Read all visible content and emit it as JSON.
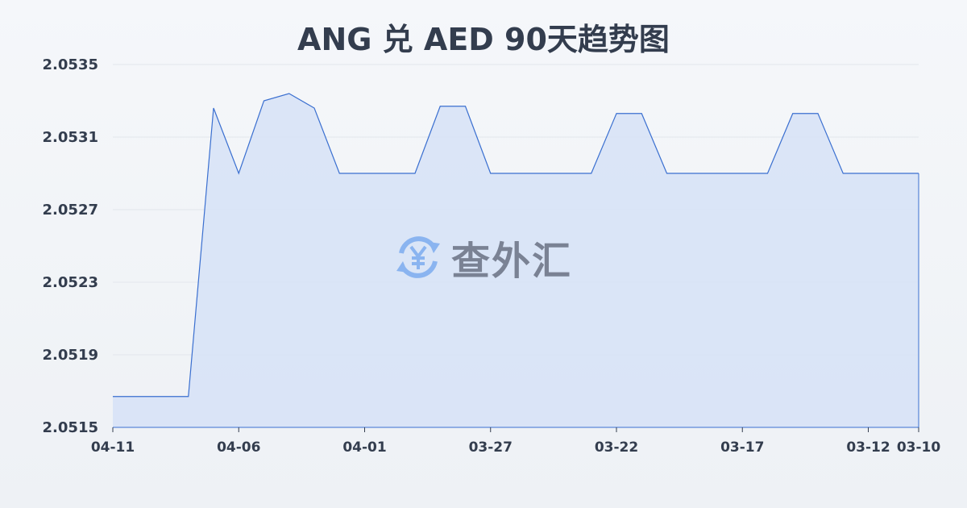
{
  "chart_data": {
    "type": "area",
    "title": "ANG 兑 AED 90天趋势图",
    "xlabel": "",
    "ylabel": "",
    "ylim": [
      2.0515,
      2.0535
    ],
    "yticks": [
      "2.0515",
      "2.0519",
      "2.0523",
      "2.0527",
      "2.0531",
      "2.0535"
    ],
    "xticks": [
      "04-11",
      "04-06",
      "04-01",
      "03-27",
      "03-22",
      "03-17",
      "03-12",
      "03-10"
    ],
    "grid": true,
    "line_color": "#3a6fd0",
    "fill_color": "#d6e2f7",
    "x": [
      "04-11",
      "04-10",
      "04-09",
      "04-08",
      "04-07",
      "04-06",
      "04-05",
      "04-04",
      "04-03",
      "04-02",
      "04-01",
      "03-31",
      "03-30",
      "03-29",
      "03-28",
      "03-27",
      "03-26",
      "03-25",
      "03-24",
      "03-23",
      "03-22",
      "03-21",
      "03-20",
      "03-19",
      "03-18",
      "03-17",
      "03-16",
      "03-15",
      "03-14",
      "03-13",
      "03-12",
      "03-11",
      "03-10"
    ],
    "values": [
      2.05167,
      2.05167,
      2.05167,
      2.05167,
      2.05326,
      2.0529,
      2.0533,
      2.05334,
      2.05326,
      2.0529,
      2.0529,
      2.0529,
      2.0529,
      2.05327,
      2.05327,
      2.0529,
      2.0529,
      2.0529,
      2.0529,
      2.0529,
      2.05323,
      2.05323,
      2.0529,
      2.0529,
      2.0529,
      2.0529,
      2.0529,
      2.05323,
      2.05323,
      2.0529,
      2.0529,
      2.0529,
      2.0529
    ]
  },
  "watermark": {
    "text": "查外汇",
    "icon": "yen-exchange-icon",
    "icon_color": "#8ab4f0"
  }
}
